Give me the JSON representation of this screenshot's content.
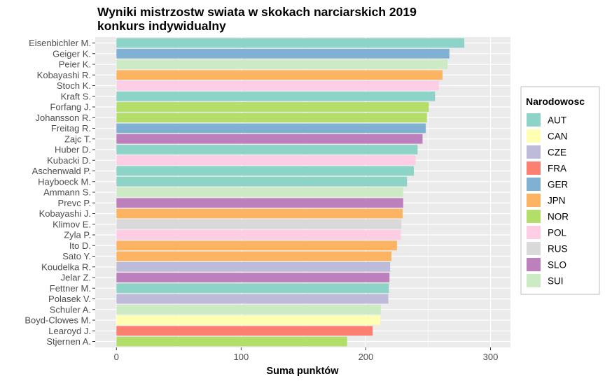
{
  "chart_data": {
    "type": "bar",
    "orientation": "horizontal",
    "title_line1": "Wyniki mistrzostw swiata w skokach narciarskich 2019",
    "title_line2": "konkurs indywidualny",
    "xlabel": "Suma punktów",
    "ylabel": "",
    "xlim": [
      -17,
      316
    ],
    "xticks": [
      0,
      100,
      200,
      300
    ],
    "grid": true,
    "legend": {
      "title": "Narodowosc",
      "position": "right",
      "entries": [
        {
          "code": "AUT",
          "color": "#8DD3C7"
        },
        {
          "code": "CAN",
          "color": "#FFFFB3"
        },
        {
          "code": "CZE",
          "color": "#BEBADA"
        },
        {
          "code": "FRA",
          "color": "#FB8072"
        },
        {
          "code": "GER",
          "color": "#80B1D3"
        },
        {
          "code": "JPN",
          "color": "#FDB462"
        },
        {
          "code": "NOR",
          "color": "#B3DE69"
        },
        {
          "code": "POL",
          "color": "#FCCDE5"
        },
        {
          "code": "RUS",
          "color": "#D9D9D9"
        },
        {
          "code": "SLO",
          "color": "#BC80BD"
        },
        {
          "code": "SUI",
          "color": "#CCEBC5"
        }
      ]
    },
    "bars": [
      {
        "name": "Eisenbichler M.",
        "country": "AUT",
        "value": 279
      },
      {
        "name": "Geiger K.",
        "country": "GER",
        "value": 267
      },
      {
        "name": "Peier K.",
        "country": "SUI",
        "value": 265.5
      },
      {
        "name": "Kobayashi R.",
        "country": "JPN",
        "value": 261.5
      },
      {
        "name": "Stoch K.",
        "country": "POL",
        "value": 258.5
      },
      {
        "name": "Kraft S.",
        "country": "AUT",
        "value": 255.5
      },
      {
        "name": "Forfang J.",
        "country": "NOR",
        "value": 250.5
      },
      {
        "name": "Johansson R.",
        "country": "NOR",
        "value": 249
      },
      {
        "name": "Freitag R.",
        "country": "GER",
        "value": 248
      },
      {
        "name": "Zajc T.",
        "country": "SLO",
        "value": 245.5
      },
      {
        "name": "Huber D.",
        "country": "AUT",
        "value": 241.5
      },
      {
        "name": "Kubacki D.",
        "country": "POL",
        "value": 240
      },
      {
        "name": "Aschenwald P.",
        "country": "AUT",
        "value": 238.5
      },
      {
        "name": "Hayboeck M.",
        "country": "AUT",
        "value": 233
      },
      {
        "name": "Ammann S.",
        "country": "SUI",
        "value": 230
      },
      {
        "name": "Prevc P.",
        "country": "SLO",
        "value": 230
      },
      {
        "name": "Kobayashi J.",
        "country": "JPN",
        "value": 229.5
      },
      {
        "name": "Klimov E.",
        "country": "RUS",
        "value": 228.5
      },
      {
        "name": "Zyla P.",
        "country": "POL",
        "value": 228
      },
      {
        "name": "Ito D.",
        "country": "JPN",
        "value": 225
      },
      {
        "name": "Sato Y.",
        "country": "JPN",
        "value": 220.5
      },
      {
        "name": "Koudelka R.",
        "country": "CZE",
        "value": 219.5
      },
      {
        "name": "Jelar Z.",
        "country": "SLO",
        "value": 219
      },
      {
        "name": "Fettner M.",
        "country": "AUT",
        "value": 218.5
      },
      {
        "name": "Polasek V.",
        "country": "CZE",
        "value": 218
      },
      {
        "name": "Schuler A.",
        "country": "SUI",
        "value": 212
      },
      {
        "name": "Boyd-Clowes M.",
        "country": "CAN",
        "value": 211.5
      },
      {
        "name": "Learoyd J.",
        "country": "FRA",
        "value": 205.5
      },
      {
        "name": "Stjernen A.",
        "country": "NOR",
        "value": 185
      }
    ]
  }
}
